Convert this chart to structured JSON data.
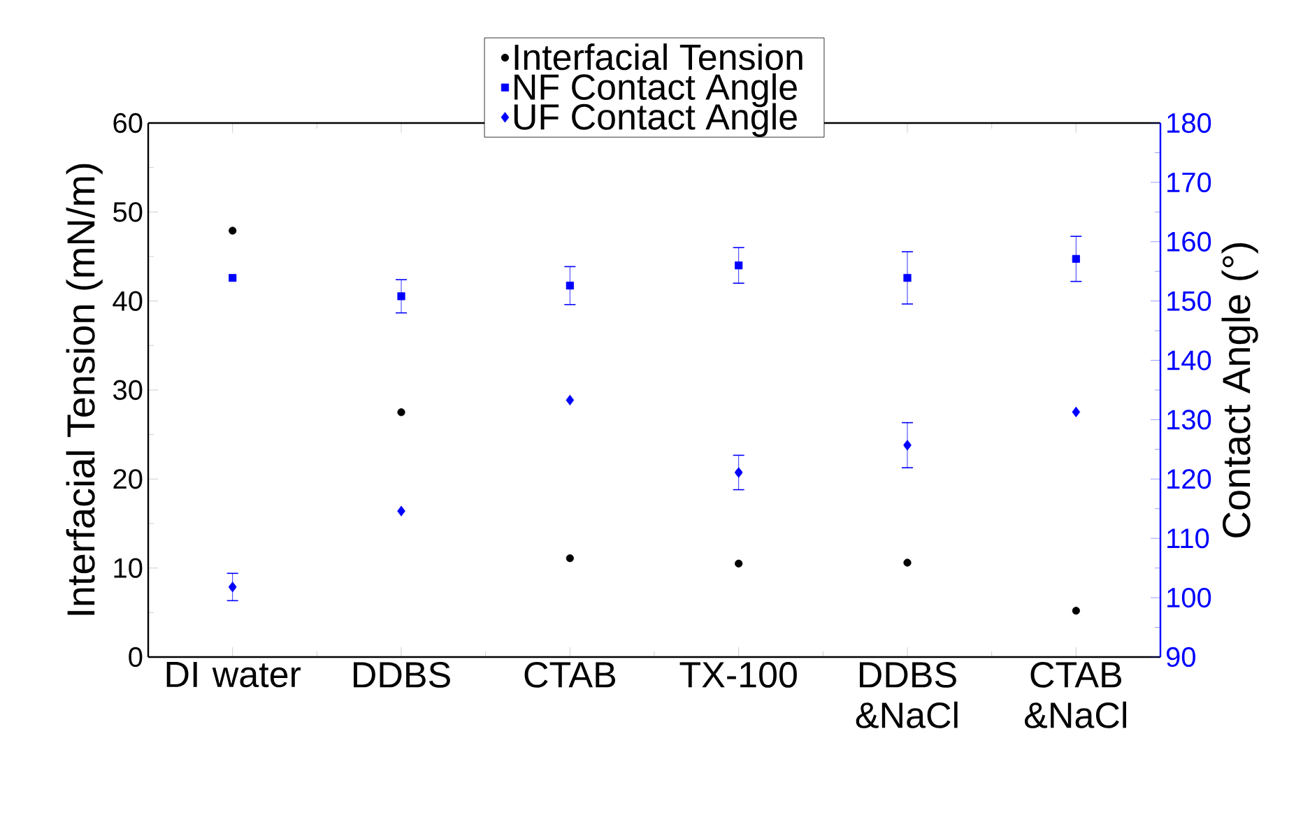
{
  "chart_data": {
    "type": "scatter",
    "categories": [
      "DI water",
      "DDBS",
      "CTAB",
      "TX-100",
      "DDBS &NaCl",
      "CTAB &NaCl"
    ],
    "ylabel": "Interfacial Tension (mN/m)",
    "y2label": "Contact Angle (°)",
    "ylim": [
      0,
      60
    ],
    "yticks": [
      0,
      10,
      20,
      30,
      40,
      50,
      60
    ],
    "y2lim": [
      90,
      180
    ],
    "y2ticks": [
      90,
      100,
      110,
      120,
      130,
      140,
      150,
      160,
      170,
      180
    ],
    "legend": "top",
    "series": [
      {
        "name": "Interfacial Tension",
        "color": "#000000",
        "marker": "circle",
        "values": [
          47.9,
          27.5,
          11.1,
          10.5,
          10.6,
          5.2
        ]
      },
      {
        "name": "NF Contact Angle",
        "color": "#0000ff",
        "marker": "square",
        "axis": "y2",
        "values": [
          153.9,
          150.8,
          152.6,
          156.0,
          153.9,
          157.1
        ],
        "errors": [
          null,
          2.8,
          3.2,
          3.0,
          4.4,
          3.8
        ]
      },
      {
        "name": "UF Contact Angle",
        "color": "#0000ff",
        "marker": "diamond",
        "axis": "y2",
        "values": [
          101.8,
          114.6,
          133.3,
          121.1,
          125.7,
          131.3
        ],
        "errors": [
          2.3,
          null,
          null,
          2.9,
          3.8,
          null
        ]
      }
    ]
  }
}
